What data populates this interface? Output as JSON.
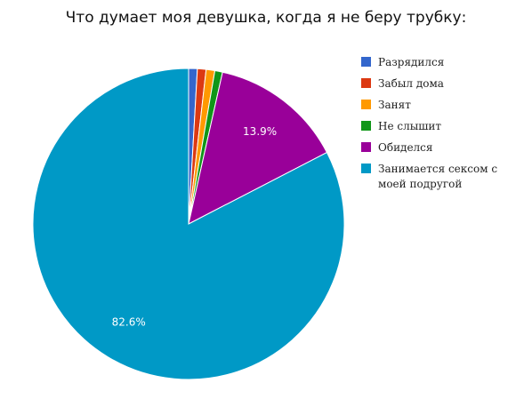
{
  "chart_data": {
    "type": "pie",
    "title": "Что думает моя девушка, когда я не беру трубку:",
    "slices": [
      {
        "name": "Разрядился",
        "value": 0.9,
        "color": "#3366cc"
      },
      {
        "name": "Забыл дома",
        "value": 0.9,
        "color": "#dc3912"
      },
      {
        "name": "Занят",
        "value": 0.9,
        "color": "#ff9900"
      },
      {
        "name": "Не слышит",
        "value": 0.8,
        "color": "#109618"
      },
      {
        "name": "Обиделся",
        "value": 13.9,
        "color": "#990099",
        "label": "13.9%"
      },
      {
        "name": "Занимается сексом с моей подругой",
        "value": 82.6,
        "color": "#0099c6",
        "label": "82.6%"
      }
    ],
    "legend_position": "right"
  }
}
